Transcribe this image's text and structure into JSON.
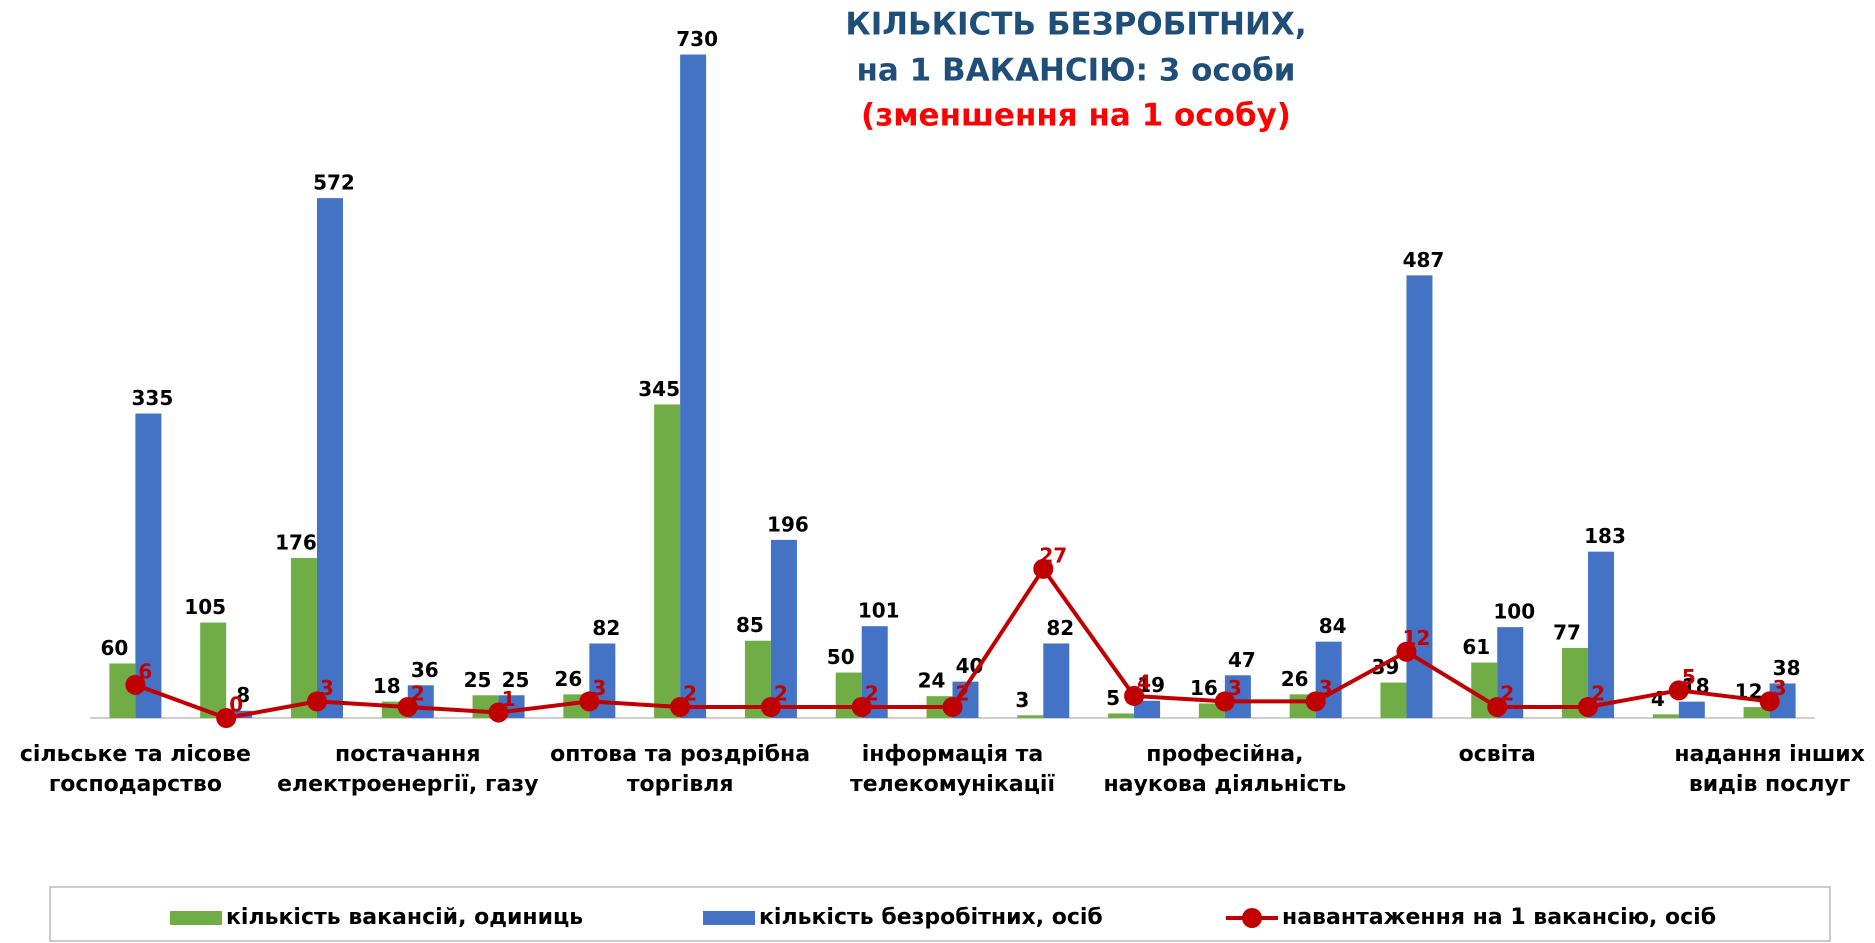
{
  "chart_data": {
    "type": "bar",
    "title": [
      "КІЛЬКІСТЬ БЕЗРОБІТНИХ,",
      "на 1 ВАКАНСІЮ: 3 особи"
    ],
    "subtitle": "(зменшення на 1 особу)",
    "categories": [
      "сільське та  лісове\nгосподарство",
      null,
      null,
      "постачання\nелектроенергії, газу",
      null,
      null,
      "оптова та роздрібна\nторгівля",
      null,
      null,
      "інформація та\nтелекомунікації",
      null,
      null,
      "професійна,\nнаукова діяльність",
      null,
      null,
      "освіта",
      null,
      null,
      "надання інших\nвидів послуг"
    ],
    "series": [
      {
        "name": "кількість вакансій, одиниць",
        "color": "#70ad47",
        "type": "bar",
        "values": [
          60,
          105,
          176,
          18,
          25,
          26,
          345,
          85,
          50,
          24,
          3,
          5,
          16,
          26,
          39,
          61,
          77,
          4,
          12
        ]
      },
      {
        "name": "кількість безробітних, осіб",
        "color": "#4472c4",
        "type": "bar",
        "values": [
          335,
          8,
          572,
          36,
          25,
          82,
          730,
          196,
          101,
          40,
          82,
          19,
          47,
          84,
          487,
          100,
          183,
          18,
          38
        ]
      },
      {
        "name": "навантаження на 1 вакансію, осіб",
        "color": "#c00000",
        "type": "line",
        "axis": "y2",
        "values": [
          6,
          0,
          3,
          2,
          1,
          3,
          2,
          2,
          2,
          2,
          27,
          4,
          3,
          3,
          12,
          2,
          2,
          5,
          3
        ]
      }
    ],
    "ylim": [
      0,
      790
    ],
    "y2lim": [
      0,
      130
    ]
  }
}
